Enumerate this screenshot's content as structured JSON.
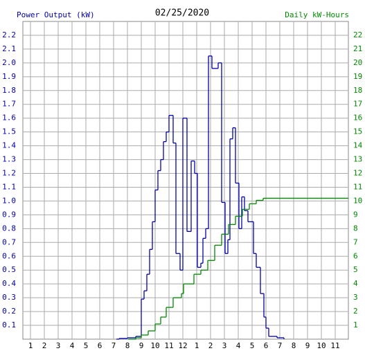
{
  "chart_data": {
    "type": "step",
    "title": "02/25/2020",
    "ylabel": "Power Output (kW)",
    "y2label": "Daily kW-Hours",
    "xlim": [
      0.45,
      23.95
    ],
    "xticks": [
      1,
      2,
      3,
      4,
      5,
      6,
      7,
      8,
      9,
      10,
      11,
      12,
      {
        "value": 13,
        "label": "1"
      },
      {
        "value": 14,
        "label": "2"
      },
      {
        "value": 15,
        "label": "3"
      },
      {
        "value": 16,
        "label": "4"
      },
      {
        "value": 17,
        "label": "5"
      },
      {
        "value": 18,
        "label": "6"
      },
      {
        "value": 19,
        "label": "7"
      },
      {
        "value": 20,
        "label": "8"
      },
      {
        "value": 21,
        "label": "9"
      },
      {
        "value": 22,
        "label": "10"
      },
      {
        "value": 23,
        "label": "11"
      }
    ],
    "ylim": [
      0,
      2.3
    ],
    "yticks": [
      0.1,
      0.2,
      0.3,
      0.4,
      0.5,
      0.6,
      0.7,
      0.8,
      0.9,
      {
        "value": 1,
        "label": "1.0"
      },
      1.1,
      1.2,
      1.3,
      1.4,
      1.5,
      1.6,
      1.7,
      1.8,
      1.9,
      {
        "value": 2,
        "label": "2.0"
      },
      2.1,
      2.2
    ],
    "y2lim": [
      0,
      23
    ],
    "y2ticks": [
      1,
      2,
      3,
      4,
      5,
      6,
      7,
      8,
      9,
      10,
      11,
      12,
      13,
      14,
      15,
      16,
      17,
      18,
      19,
      20,
      21,
      22
    ],
    "grid": true,
    "ylabel_color": "#0000aa",
    "y2label_color": "#008800",
    "series": [
      {
        "color": "#0000aa",
        "axis": "y",
        "x": [
          7.2,
          7.4,
          8.0,
          8.6,
          9.0,
          9.2,
          9.4,
          9.6,
          9.8,
          10.0,
          10.2,
          10.4,
          10.6,
          10.8,
          11.0,
          11.3,
          11.5,
          11.8,
          12.0,
          12.3,
          12.6,
          12.85,
          13.05,
          13.3,
          13.45,
          13.65,
          13.85,
          14.1,
          14.3,
          14.55,
          14.8,
          15.05,
          15.25,
          15.4,
          15.6,
          15.8,
          16.05,
          16.25,
          16.45,
          16.7,
          17.1,
          17.3,
          17.6,
          17.85,
          18.0,
          18.2,
          18.8,
          19.3
        ],
        "values": [
          0,
          0.005,
          0.01,
          0.02,
          0.29,
          0.35,
          0.47,
          0.65,
          0.85,
          1.08,
          1.22,
          1.3,
          1.43,
          1.5,
          1.62,
          1.42,
          0.62,
          0.5,
          1.6,
          0.78,
          1.29,
          1.2,
          0.52,
          0.55,
          0.73,
          0.8,
          2.05,
          1.96,
          1.96,
          2.0,
          0.99,
          0.62,
          0.72,
          1.45,
          1.53,
          1.13,
          0.8,
          1.03,
          0.93,
          0.85,
          0.62,
          0.52,
          0.33,
          0.16,
          0.08,
          0.02,
          0.01,
          0
        ]
      },
      {
        "color": "#008800",
        "axis": "y2",
        "x": [
          8.05,
          8.6,
          9.0,
          9.5,
          10.0,
          10.4,
          10.8,
          11.3,
          11.9,
          12.05,
          12.8,
          13.3,
          13.8,
          14.3,
          14.8,
          15.3,
          15.8,
          16.3,
          16.8,
          17.3,
          17.8,
          23.95
        ],
        "values": [
          0,
          0.1,
          0.3,
          0.6,
          1.1,
          1.6,
          2.3,
          3.0,
          3.3,
          4.0,
          4.7,
          5.0,
          5.7,
          6.8,
          7.6,
          8.3,
          8.9,
          9.4,
          9.8,
          10.05,
          10.2,
          10.2
        ]
      }
    ]
  }
}
